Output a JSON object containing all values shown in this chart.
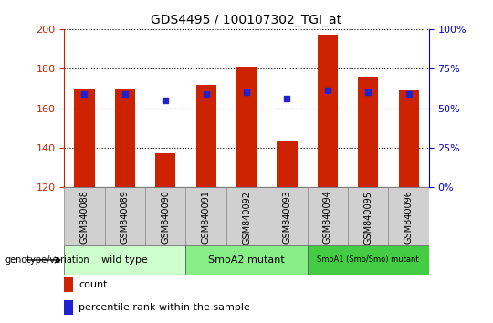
{
  "title": "GDS4495 / 100107302_TGI_at",
  "samples": [
    "GSM840088",
    "GSM840089",
    "GSM840090",
    "GSM840091",
    "GSM840092",
    "GSM840093",
    "GSM840094",
    "GSM840095",
    "GSM840096"
  ],
  "counts": [
    170,
    170,
    137,
    172,
    181,
    143,
    197,
    176,
    169
  ],
  "percentile_values": [
    167,
    167,
    164,
    167,
    168,
    165,
    169,
    168,
    167
  ],
  "ylim_left": [
    120,
    200
  ],
  "ylim_right": [
    0,
    100
  ],
  "yticks_left": [
    120,
    140,
    160,
    180,
    200
  ],
  "yticks_right": [
    0,
    25,
    50,
    75,
    100
  ],
  "bar_color": "#cc2200",
  "dot_color": "#2222cc",
  "groups": [
    {
      "label": "wild type",
      "indices": [
        0,
        1,
        2
      ],
      "color": "#ccffcc"
    },
    {
      "label": "SmoA2 mutant",
      "indices": [
        3,
        4,
        5
      ],
      "color": "#88ee88"
    },
    {
      "label": "SmoA1 (Smo/Smo) mutant",
      "indices": [
        6,
        7,
        8
      ],
      "color": "#44cc44"
    }
  ],
  "genotype_label": "genotype/variation",
  "legend_count": "count",
  "legend_percentile": "percentile rank within the sample",
  "plot_bg": "#ffffff",
  "left_axis_color": "#cc2200",
  "right_axis_color": "#0000cc",
  "sample_box_color": "#d0d0d0",
  "bar_width": 0.5,
  "title_fontsize": 10,
  "tick_fontsize": 8,
  "sample_fontsize": 7,
  "legend_fontsize": 8,
  "group_fontsize_small": 6,
  "group_fontsize_large": 8
}
